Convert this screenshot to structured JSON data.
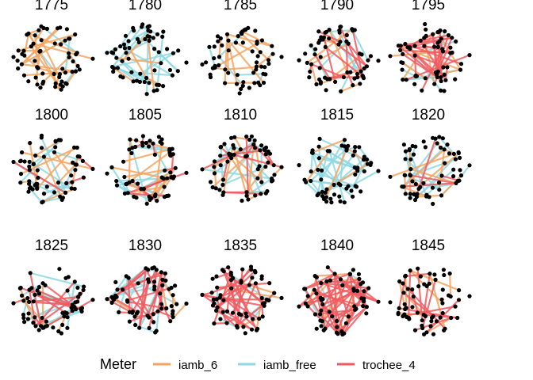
{
  "chart_data": {
    "type": "network",
    "panels": [
      "1775",
      "1780",
      "1785",
      "1790",
      "1795",
      "1800",
      "1805",
      "1810",
      "1815",
      "1820",
      "1825",
      "1830",
      "1835",
      "1840",
      "1845"
    ],
    "legend": {
      "title": "Meter",
      "items": [
        {
          "name": "iamb_6",
          "color": "#F4A460"
        },
        {
          "name": "iamb_free",
          "color": "#8FD8E3"
        },
        {
          "name": "trochee_4",
          "color": "#F05A5F"
        }
      ]
    },
    "edge_mix": {
      "1775": {
        "iamb_6": 28,
        "iamb_free": 6,
        "trochee_4": 0
      },
      "1780": {
        "iamb_6": 8,
        "iamb_free": 30,
        "trochee_4": 0
      },
      "1785": {
        "iamb_6": 14,
        "iamb_free": 5,
        "trochee_4": 0
      },
      "1790": {
        "iamb_6": 10,
        "iamb_free": 8,
        "trochee_4": 16
      },
      "1795": {
        "iamb_6": 10,
        "iamb_free": 10,
        "trochee_4": 30
      },
      "1800": {
        "iamb_6": 12,
        "iamb_free": 18,
        "trochee_4": 5
      },
      "1805": {
        "iamb_6": 16,
        "iamb_free": 16,
        "trochee_4": 10
      },
      "1810": {
        "iamb_6": 14,
        "iamb_free": 20,
        "trochee_4": 12
      },
      "1815": {
        "iamb_6": 6,
        "iamb_free": 34,
        "trochee_4": 0
      },
      "1820": {
        "iamb_6": 14,
        "iamb_free": 20,
        "trochee_4": 4
      },
      "1825": {
        "iamb_6": 6,
        "iamb_free": 16,
        "trochee_4": 18
      },
      "1830": {
        "iamb_6": 6,
        "iamb_free": 16,
        "trochee_4": 28
      },
      "1835": {
        "iamb_6": 4,
        "iamb_free": 6,
        "trochee_4": 36
      },
      "1840": {
        "iamb_6": 10,
        "iamb_free": 8,
        "trochee_4": 55
      },
      "1845": {
        "iamb_6": 10,
        "iamb_free": 0,
        "trochee_4": 14
      }
    }
  }
}
